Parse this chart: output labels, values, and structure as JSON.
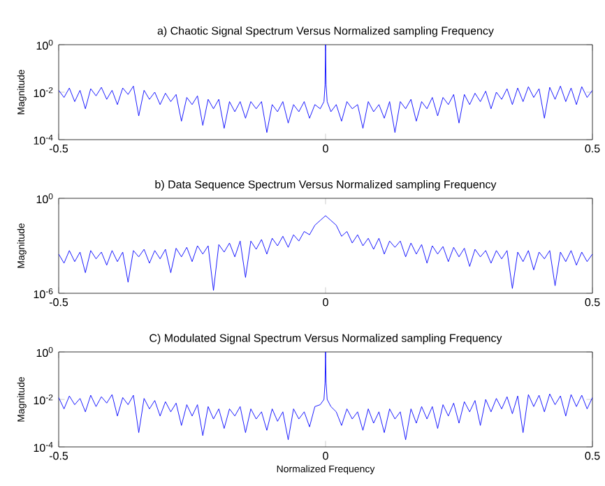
{
  "chart_data": [
    {
      "type": "line",
      "title": "a) Chaotic Signal Spectrum Versus Normalized sampling Frequency",
      "ylabel": "Magnitude",
      "log": "y",
      "xlim": [
        -0.5,
        0.5
      ],
      "xticks": [
        -0.5,
        0,
        0.5
      ],
      "ylim": [
        0.0001,
        1
      ],
      "yticks": [
        {
          "value": 0.0001,
          "label": "10$^{-4}$"
        },
        {
          "value": 0.01,
          "label": "10$^{-2}$"
        },
        {
          "value": 1,
          "label": "10$^{0}$"
        }
      ],
      "series": [
        {
          "color": "#0000ff",
          "x": [
            -0.5,
            -0.49,
            -0.48,
            -0.47,
            -0.46,
            -0.45,
            -0.44,
            -0.43,
            -0.42,
            -0.41,
            -0.4,
            -0.39,
            -0.38,
            -0.37,
            -0.36,
            -0.35,
            -0.34,
            -0.33,
            -0.32,
            -0.31,
            -0.3,
            -0.29,
            -0.28,
            -0.27,
            -0.26,
            -0.25,
            -0.24,
            -0.23,
            -0.22,
            -0.21,
            -0.2,
            -0.19,
            -0.18,
            -0.17,
            -0.16,
            -0.15,
            -0.14,
            -0.13,
            -0.12,
            -0.11,
            -0.1,
            -0.09,
            -0.08,
            -0.07,
            -0.06,
            -0.05,
            -0.04,
            -0.03,
            -0.02,
            -0.01,
            -0.003,
            -0.001,
            0,
            0.001,
            0.003,
            0.01,
            0.02,
            0.03,
            0.04,
            0.05,
            0.06,
            0.07,
            0.08,
            0.09,
            0.1,
            0.11,
            0.12,
            0.13,
            0.14,
            0.15,
            0.16,
            0.17,
            0.18,
            0.19,
            0.2,
            0.21,
            0.22,
            0.23,
            0.24,
            0.25,
            0.26,
            0.27,
            0.28,
            0.29,
            0.3,
            0.31,
            0.32,
            0.33,
            0.34,
            0.35,
            0.36,
            0.37,
            0.38,
            0.39,
            0.4,
            0.41,
            0.42,
            0.43,
            0.44,
            0.45,
            0.46,
            0.47,
            0.48,
            0.49,
            0.5
          ],
          "values": [
            0.012,
            0.006,
            0.015,
            0.004,
            0.012,
            0.002,
            0.014,
            0.007,
            0.016,
            0.005,
            0.012,
            0.003,
            0.015,
            0.008,
            0.018,
            0.001,
            0.012,
            0.005,
            0.01,
            0.003,
            0.009,
            0.004,
            0.008,
            0.0006,
            0.006,
            0.003,
            0.007,
            0.0004,
            0.005,
            0.002,
            0.005,
            0.0003,
            0.004,
            0.0015,
            0.004,
            0.0008,
            0.004,
            0.002,
            0.004,
            0.0002,
            0.003,
            0.0015,
            0.004,
            0.0005,
            0.003,
            0.0015,
            0.004,
            0.0008,
            0.003,
            0.002,
            0.004,
            0.02,
            1,
            0.02,
            0.004,
            0.0015,
            0.003,
            0.0006,
            0.004,
            0.002,
            0.003,
            0.0003,
            0.004,
            0.0015,
            0.003,
            0.0008,
            0.004,
            0.0002,
            0.004,
            0.002,
            0.005,
            0.0006,
            0.004,
            0.002,
            0.006,
            0.001,
            0.006,
            0.003,
            0.008,
            0.0005,
            0.008,
            0.003,
            0.009,
            0.004,
            0.011,
            0.002,
            0.01,
            0.005,
            0.014,
            0.003,
            0.015,
            0.004,
            0.017,
            0.006,
            0.014,
            0.0008,
            0.016,
            0.005,
            0.018,
            0.004,
            0.015,
            0.003,
            0.017,
            0.006,
            0.012
          ]
        }
      ]
    },
    {
      "type": "line",
      "title": "b) Data Sequence Spectrum Versus Normalized sampling Frequency",
      "ylabel": "Magnitude",
      "log": "y",
      "xlim": [
        -0.5,
        0.5
      ],
      "xticks": [
        -0.5,
        0,
        0.5
      ],
      "ylim": [
        1e-06,
        1
      ],
      "yticks": [
        {
          "value": 1e-06,
          "label": "10$^{-6}$"
        },
        {
          "value": 1,
          "label": "10$^{0}$"
        }
      ],
      "series": [
        {
          "color": "#0000ff",
          "x": [
            -0.5,
            -0.49,
            -0.48,
            -0.47,
            -0.46,
            -0.45,
            -0.44,
            -0.43,
            -0.42,
            -0.41,
            -0.4,
            -0.39,
            -0.38,
            -0.37,
            -0.36,
            -0.35,
            -0.34,
            -0.33,
            -0.32,
            -0.31,
            -0.3,
            -0.29,
            -0.28,
            -0.27,
            -0.26,
            -0.25,
            -0.24,
            -0.23,
            -0.22,
            -0.21,
            -0.2,
            -0.19,
            -0.18,
            -0.17,
            -0.16,
            -0.15,
            -0.14,
            -0.13,
            -0.12,
            -0.11,
            -0.1,
            -0.09,
            -0.08,
            -0.07,
            -0.06,
            -0.05,
            -0.04,
            -0.03,
            -0.02,
            -0.01,
            0,
            0.01,
            0.02,
            0.03,
            0.04,
            0.05,
            0.06,
            0.07,
            0.08,
            0.09,
            0.1,
            0.11,
            0.12,
            0.13,
            0.14,
            0.15,
            0.16,
            0.17,
            0.18,
            0.19,
            0.2,
            0.21,
            0.22,
            0.23,
            0.24,
            0.25,
            0.26,
            0.27,
            0.28,
            0.29,
            0.3,
            0.31,
            0.32,
            0.33,
            0.34,
            0.35,
            0.36,
            0.37,
            0.38,
            0.39,
            0.4,
            0.41,
            0.42,
            0.43,
            0.44,
            0.45,
            0.46,
            0.47,
            0.48,
            0.49,
            0.5
          ],
          "values": [
            0.0003,
            8e-05,
            0.0005,
            0.0001,
            0.0004,
            2e-05,
            0.0005,
            0.00015,
            0.0004,
            6e-05,
            0.0005,
            0.0001,
            0.0004,
            5e-06,
            0.0005,
            0.0002,
            0.0006,
            8e-05,
            0.0005,
            0.00015,
            0.0006,
            2e-05,
            0.0007,
            0.0002,
            0.0008,
            0.0001,
            0.001,
            0.0003,
            0.001,
            1.5e-06,
            0.0012,
            0.0004,
            0.0015,
            0.0002,
            0.002,
            1e-05,
            0.002,
            0.0006,
            0.0025,
            0.0003,
            0.003,
            0.001,
            0.004,
            0.0008,
            0.005,
            0.002,
            0.008,
            0.005,
            0.02,
            0.04,
            0.08,
            0.04,
            0.02,
            0.004,
            0.008,
            0.0015,
            0.005,
            0.001,
            0.003,
            0.0006,
            0.003,
            0.0003,
            0.002,
            0.0008,
            0.002,
            0.0002,
            0.0015,
            0.0003,
            0.0012,
            8e-05,
            0.001,
            0.0003,
            0.0009,
            0.0001,
            0.0008,
            0.0002,
            0.0007,
            5e-05,
            0.0006,
            0.0002,
            0.0005,
            8e-05,
            0.0005,
            0.00015,
            0.0005,
            2e-06,
            0.0004,
            0.0001,
            0.0005,
            3e-05,
            0.0004,
            0.00015,
            0.0005,
            3e-06,
            0.0004,
            0.0001,
            0.0005,
            6e-05,
            0.0004,
            0.0001,
            0.0003
          ]
        }
      ]
    },
    {
      "type": "line",
      "title": "C) Modulated Signal Spectrum Versus Normalized sampling Frequency",
      "xlabel": "Normalized Frequency",
      "ylabel": "Magnitude",
      "log": "y",
      "xlim": [
        -0.5,
        0.5
      ],
      "xticks": [
        -0.5,
        0,
        0.5
      ],
      "ylim": [
        0.0001,
        1
      ],
      "yticks": [
        {
          "value": 0.0001,
          "label": "10$^{-4}$"
        },
        {
          "value": 0.01,
          "label": "10$^{-2}$"
        },
        {
          "value": 1,
          "label": "10$^{0}$"
        }
      ],
      "series": [
        {
          "color": "#0000ff",
          "x": [
            -0.5,
            -0.49,
            -0.48,
            -0.47,
            -0.46,
            -0.45,
            -0.44,
            -0.43,
            -0.42,
            -0.41,
            -0.4,
            -0.39,
            -0.38,
            -0.37,
            -0.36,
            -0.35,
            -0.34,
            -0.33,
            -0.32,
            -0.31,
            -0.3,
            -0.29,
            -0.28,
            -0.27,
            -0.26,
            -0.25,
            -0.24,
            -0.23,
            -0.22,
            -0.21,
            -0.2,
            -0.19,
            -0.18,
            -0.17,
            -0.16,
            -0.15,
            -0.14,
            -0.13,
            -0.12,
            -0.11,
            -0.1,
            -0.09,
            -0.08,
            -0.07,
            -0.06,
            -0.05,
            -0.04,
            -0.03,
            -0.02,
            -0.01,
            -0.003,
            -0.001,
            0,
            0.001,
            0.003,
            0.01,
            0.02,
            0.03,
            0.04,
            0.05,
            0.06,
            0.07,
            0.08,
            0.09,
            0.1,
            0.11,
            0.12,
            0.13,
            0.14,
            0.15,
            0.16,
            0.17,
            0.18,
            0.19,
            0.2,
            0.21,
            0.22,
            0.23,
            0.24,
            0.25,
            0.26,
            0.27,
            0.28,
            0.29,
            0.3,
            0.31,
            0.32,
            0.33,
            0.34,
            0.35,
            0.36,
            0.37,
            0.38,
            0.39,
            0.4,
            0.41,
            0.42,
            0.43,
            0.44,
            0.45,
            0.46,
            0.47,
            0.48,
            0.49,
            0.5
          ],
          "values": [
            0.012,
            0.004,
            0.014,
            0.006,
            0.011,
            0.003,
            0.015,
            0.005,
            0.013,
            0.007,
            0.016,
            0.002,
            0.012,
            0.006,
            0.015,
            0.0004,
            0.011,
            0.004,
            0.009,
            0.002,
            0.008,
            0.003,
            0.007,
            0.0008,
            0.006,
            0.002,
            0.006,
            0.0003,
            0.005,
            0.0015,
            0.004,
            0.0006,
            0.004,
            0.002,
            0.005,
            0.0004,
            0.004,
            0.0015,
            0.003,
            0.0005,
            0.004,
            0.0012,
            0.003,
            0.0002,
            0.004,
            0.0015,
            0.003,
            0.0007,
            0.005,
            0.006,
            0.01,
            0.05,
            1,
            0.05,
            0.01,
            0.005,
            0.003,
            0.0008,
            0.004,
            0.0015,
            0.003,
            0.0005,
            0.004,
            0.001,
            0.003,
            0.0004,
            0.004,
            0.0015,
            0.003,
            0.0002,
            0.004,
            0.001,
            0.005,
            0.0015,
            0.005,
            0.0006,
            0.006,
            0.002,
            0.007,
            0.001,
            0.008,
            0.003,
            0.009,
            0.0008,
            0.01,
            0.003,
            0.011,
            0.004,
            0.013,
            0.0025,
            0.014,
            0.0004,
            0.016,
            0.005,
            0.015,
            0.003,
            0.017,
            0.006,
            0.014,
            0.002,
            0.016,
            0.005,
            0.015,
            0.004,
            0.012
          ]
        }
      ]
    }
  ]
}
